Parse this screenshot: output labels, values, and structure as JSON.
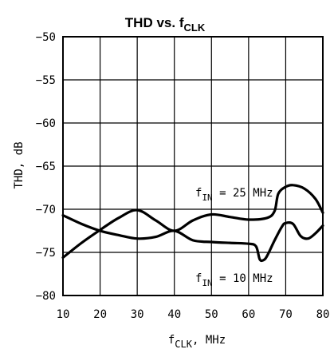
{
  "chart_data": {
    "type": "line",
    "title": {
      "main": "THD vs. f",
      "sub": "CLK"
    },
    "xlabel": {
      "main": "f",
      "sub": "CLK",
      "suffix": ", MHz"
    },
    "ylabel": "THD, dB",
    "xlim": [
      10,
      80
    ],
    "ylim": [
      -80,
      -50
    ],
    "xticks": [
      10,
      20,
      30,
      40,
      50,
      60,
      70,
      80
    ],
    "yticks": [
      -50,
      -55,
      -60,
      -65,
      -70,
      -75,
      -80
    ],
    "grid": true,
    "series": [
      {
        "label": {
          "main": "f",
          "sub": "IN",
          "rest": " = 25 MHz"
        },
        "color": "#000000",
        "points": [
          [
            10,
            -75.6
          ],
          [
            15,
            -73.9
          ],
          [
            20,
            -72.4
          ],
          [
            25,
            -71.0
          ],
          [
            30,
            -70.1
          ],
          [
            35,
            -71.3
          ],
          [
            40,
            -72.5
          ],
          [
            45,
            -71.3
          ],
          [
            50,
            -70.6
          ],
          [
            55,
            -70.9
          ],
          [
            60,
            -71.2
          ],
          [
            65,
            -71.0
          ],
          [
            67,
            -70.2
          ],
          [
            68,
            -68.2
          ],
          [
            70,
            -67.4
          ],
          [
            72,
            -67.2
          ],
          [
            75,
            -67.6
          ],
          [
            78,
            -68.8
          ],
          [
            80,
            -70.4
          ]
        ]
      },
      {
        "label": {
          "main": "f",
          "sub": "IN",
          "rest": " = 10 MHz"
        },
        "color": "#000000",
        "points": [
          [
            10,
            -70.7
          ],
          [
            15,
            -71.7
          ],
          [
            20,
            -72.5
          ],
          [
            25,
            -73.0
          ],
          [
            30,
            -73.4
          ],
          [
            35,
            -73.2
          ],
          [
            40,
            -72.5
          ],
          [
            45,
            -73.6
          ],
          [
            50,
            -73.8
          ],
          [
            55,
            -73.9
          ],
          [
            60,
            -74.0
          ],
          [
            62,
            -74.3
          ],
          [
            63,
            -75.8
          ],
          [
            64,
            -75.9
          ],
          [
            65,
            -75.4
          ],
          [
            67,
            -73.6
          ],
          [
            69,
            -72.0
          ],
          [
            70,
            -71.6
          ],
          [
            72,
            -71.7
          ],
          [
            74,
            -73.1
          ],
          [
            76,
            -73.4
          ],
          [
            78,
            -72.8
          ],
          [
            80,
            -71.9
          ]
        ]
      }
    ]
  }
}
